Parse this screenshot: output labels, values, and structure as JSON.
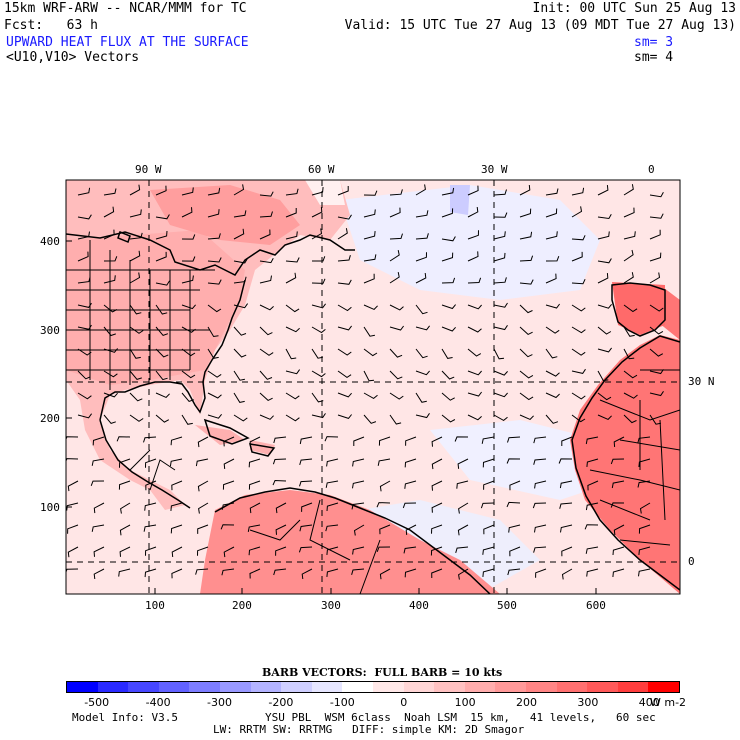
{
  "header": {
    "line1_left": "15km WRF-ARW -- NCAR/MMM for TC",
    "line1_right": "Init: 00 UTC Sun 25 Aug 13",
    "line2_left": "Fcst:   63 h",
    "line2_right": "Valid: 15 UTC Tue 27 Aug 13 (09 MDT Tue 27 Aug 13)",
    "field1_name": "UPWARD HEAT FLUX AT THE SURFACE",
    "field1_sm": "sm= 3",
    "field2_name": "<U10,V10> Vectors",
    "field2_sm": "sm= 4"
  },
  "map": {
    "top_lon_labels": [
      "90 W",
      "60 W",
      "30 W",
      "0"
    ],
    "right_lat_labels": [
      "30 N",
      "0"
    ],
    "left_y_ticks": [
      "400",
      "300",
      "200",
      "100"
    ],
    "bottom_x_ticks": [
      "100",
      "200",
      "300",
      "400",
      "500",
      "600"
    ]
  },
  "barb_caption": "BARB VECTORS:  FULL BARB = 10 kts",
  "colorbar": {
    "labels": [
      "-500",
      "-400",
      "-300",
      "-200",
      "-100",
      "0",
      "100",
      "200",
      "300",
      "400"
    ],
    "unit": "W m-2",
    "colors": [
      "#0000ff",
      "#2a2aff",
      "#4747ff",
      "#6262ff",
      "#7d7dff",
      "#9999ff",
      "#b3b3ff",
      "#cfcfff",
      "#e6e6ff",
      "#ffffff",
      "#ffe8e8",
      "#ffd6d6",
      "#ffc2c2",
      "#ffadad",
      "#ff9999",
      "#ff8585",
      "#ff7070",
      "#ff5959",
      "#ff3d3d",
      "#ff0000"
    ]
  },
  "footer": {
    "model_info": "Model Info: V3.5",
    "physics_line1": "YSU PBL  WSM 6class  Noah LSM  15 km,   41 levels,   60 sec",
    "physics_line2": "LW: RRTM SW: RRTMG   DIFF: simple KM: 2D Smagor"
  }
}
